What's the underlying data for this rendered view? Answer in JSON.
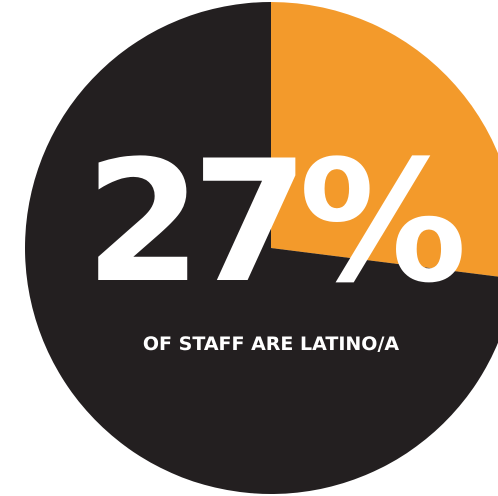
{
  "chart_data": {
    "type": "pie",
    "slices": [
      {
        "value": 27,
        "color": "#f39a2b"
      },
      {
        "value": 73,
        "color": "#231f20"
      }
    ],
    "headline": "27%",
    "caption": "OF STAFF ARE LATINO/A"
  }
}
